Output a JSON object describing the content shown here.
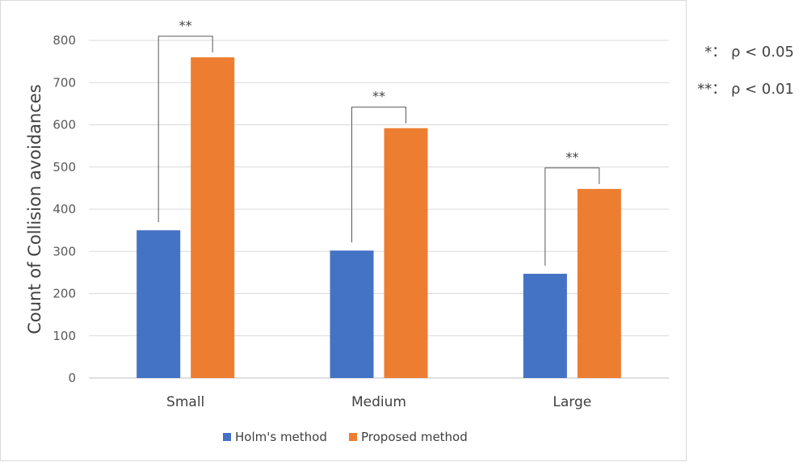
{
  "chart_data": {
    "type": "bar",
    "categories": [
      "Small",
      "Medium",
      "Large"
    ],
    "series": [
      {
        "name": "Holm's method",
        "values": [
          350,
          302,
          247
        ],
        "color": "#4472C4"
      },
      {
        "name": "Proposed method",
        "values": [
          760,
          592,
          448
        ],
        "color": "#ED7D31"
      }
    ],
    "xlabel": "",
    "ylabel": "Count of Collision avoidances",
    "ylim": [
      0,
      800
    ],
    "yticks": [
      0,
      100,
      200,
      300,
      400,
      500,
      600,
      700,
      800
    ],
    "grid": true,
    "legend_position": "bottom",
    "significance_marks": [
      "**",
      "**",
      "**"
    ],
    "annotations": [
      "*： ρ < 0.05",
      "**： ρ < 0.01"
    ]
  }
}
